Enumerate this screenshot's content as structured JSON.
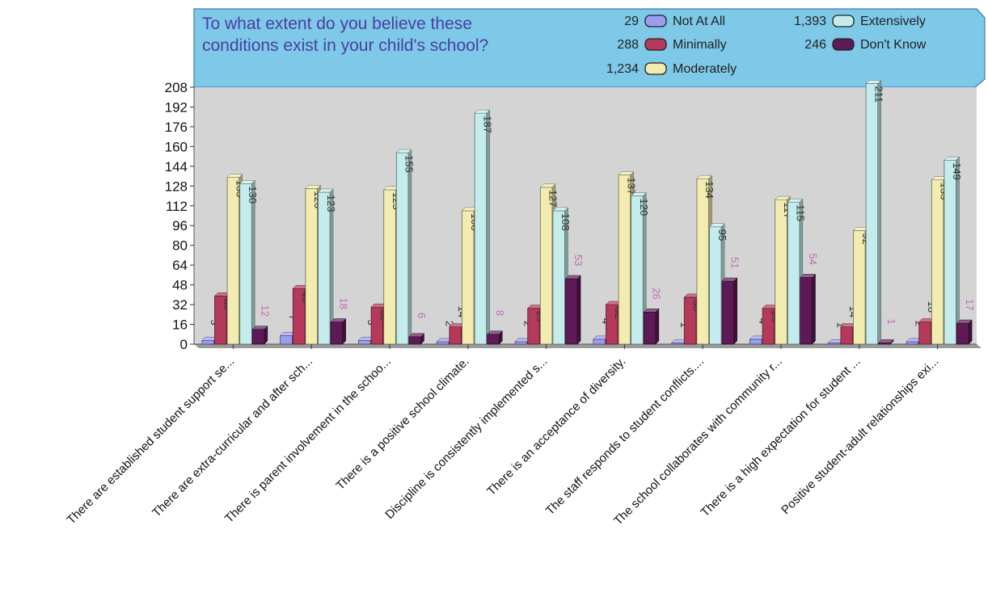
{
  "chart_data": {
    "type": "bar",
    "title": "To what extent do you believe these conditions exist in your child's school?",
    "title_lines": [
      "To what extent do you believe these",
      "conditions exist in your child's school?"
    ],
    "categories": [
      "There are established student support se...",
      "There are extra-curricular and after sch...",
      "There is parent involvement in the schoo...",
      "There is a positive school climate.",
      "Discipline is consistently implemented s...",
      "There is an acceptance of diversity.",
      "The staff responds to student conflicts....",
      "The school collaborates with community r...",
      "There is a high expectation for student ...",
      "Positive student-adult relationships exi..."
    ],
    "series": [
      {
        "name": "Not At All",
        "total": "29",
        "color": "#9b9ef0",
        "values": [
          3,
          7,
          3,
          2,
          2,
          4,
          1,
          4,
          1,
          2
        ]
      },
      {
        "name": "Minimally",
        "total": "288",
        "color": "#b5395a",
        "values": [
          39,
          45,
          30,
          14,
          29,
          32,
          38,
          29,
          14,
          18
        ]
      },
      {
        "name": "Moderately",
        "total": "1,234",
        "color": "#f2ecb0",
        "values": [
          135,
          126,
          125,
          108,
          127,
          137,
          134,
          117,
          92,
          133
        ]
      },
      {
        "name": "Extensively",
        "total": "1,393",
        "color": "#c5ecec",
        "values": [
          130,
          123,
          155,
          187,
          108,
          120,
          95,
          115,
          211,
          149
        ]
      },
      {
        "name": "Don't Know",
        "total": "246",
        "color": "#5e1a56",
        "values": [
          12,
          18,
          6,
          8,
          53,
          26,
          51,
          54,
          1,
          17
        ]
      }
    ],
    "yticks": [
      0,
      16,
      32,
      48,
      64,
      80,
      96,
      112,
      128,
      144,
      160,
      176,
      192,
      208
    ],
    "ylim": [
      0,
      208
    ],
    "grid": false,
    "legend_position": "top-right",
    "header_color": "#7ec8e8",
    "plot_background": "#d4d4d4"
  }
}
